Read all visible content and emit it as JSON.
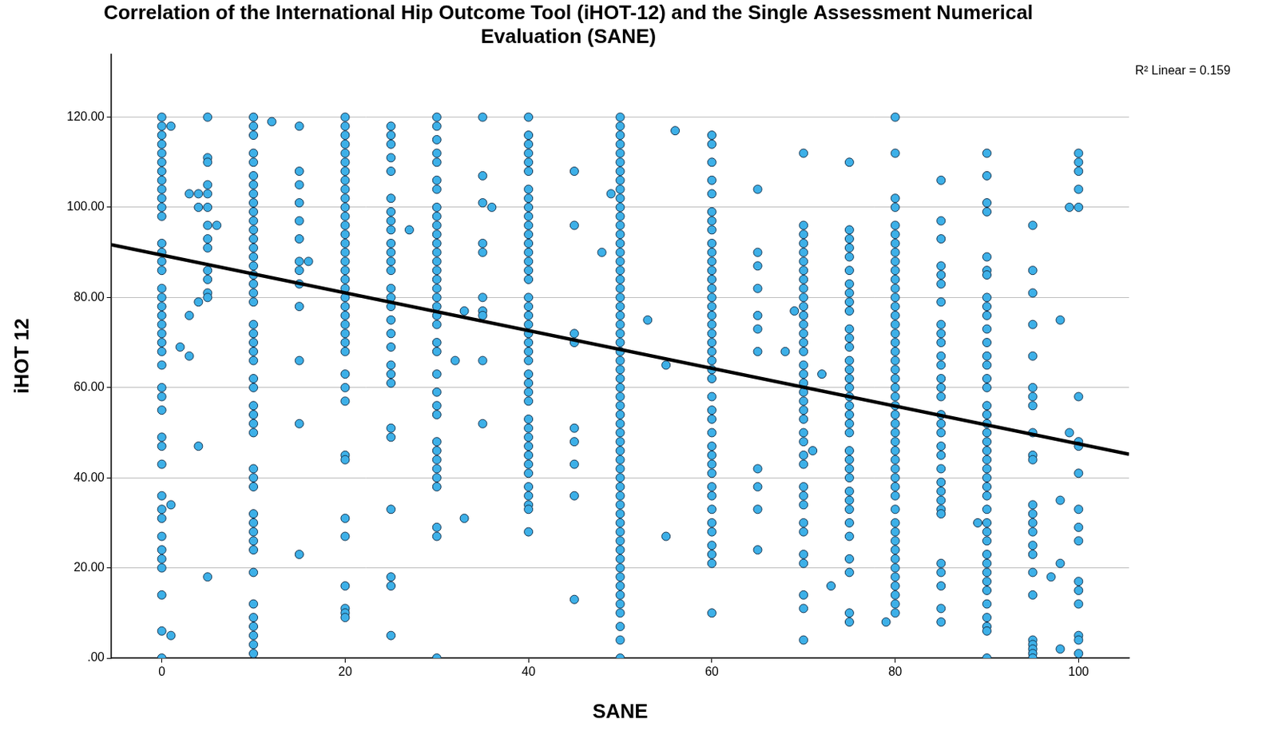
{
  "chart_data": {
    "type": "scatter",
    "title": [
      "Correlation of the International Hip Outcome Tool (iHOT-12) and the Single Assessment Numerical",
      "Evaluation (SANE)"
    ],
    "x_label": "SANE",
    "y_label": "iHOT 12",
    "annotations": [
      {
        "text": "R² Linear = 0.159"
      }
    ],
    "xlim": [
      -5.5,
      105.5
    ],
    "xticks": [
      0,
      20,
      40,
      60,
      80,
      100
    ],
    "ylim": [
      0,
      134
    ],
    "yticks": [
      {
        "value": 0,
        "label": ".00"
      },
      {
        "value": 20,
        "label": "20.00"
      },
      {
        "value": 40,
        "label": "40.00"
      },
      {
        "value": 60,
        "label": "60.00"
      },
      {
        "value": 80,
        "label": "80.00"
      },
      {
        "value": 100,
        "label": "100.00"
      },
      {
        "value": 120,
        "label": "120.00"
      }
    ],
    "grid": true,
    "series": [
      {
        "type": "scatter",
        "marker": "circle",
        "color": "#3db0e8",
        "x": [
          0,
          0,
          0,
          0,
          0,
          0,
          0,
          0,
          0,
          0,
          0,
          0,
          0,
          0,
          0,
          0,
          0,
          0,
          0,
          0,
          0,
          0,
          0,
          0,
          0,
          0,
          0,
          0,
          0,
          0,
          0,
          0,
          0,
          0,
          0,
          0,
          0,
          0,
          0,
          0,
          0,
          1,
          1,
          1,
          2,
          3,
          3,
          3,
          4,
          4,
          4,
          4,
          5,
          5,
          5,
          5,
          5,
          5,
          5,
          5,
          5,
          5,
          5,
          5,
          5,
          5,
          6,
          10,
          10,
          10,
          10,
          10,
          10,
          10,
          10,
          10,
          10,
          10,
          10,
          10,
          10,
          10,
          10,
          10,
          10,
          10,
          10,
          10,
          10,
          10,
          10,
          10,
          10,
          10,
          10,
          10,
          10,
          10,
          10,
          10,
          10,
          10,
          10,
          10,
          10,
          10,
          10,
          10,
          10,
          10,
          10,
          10,
          10,
          12,
          15,
          15,
          15,
          15,
          15,
          15,
          15,
          15,
          15,
          15,
          15,
          15,
          15,
          16,
          20,
          20,
          20,
          20,
          20,
          20,
          20,
          20,
          20,
          20,
          20,
          20,
          20,
          20,
          20,
          20,
          20,
          20,
          20,
          20,
          20,
          20,
          20,
          20,
          20,
          20,
          20,
          20,
          20,
          20,
          20,
          20,
          20,
          20,
          20,
          20,
          20,
          20,
          25,
          25,
          25,
          25,
          25,
          25,
          25,
          25,
          25,
          25,
          25,
          25,
          25,
          25,
          25,
          25,
          25,
          25,
          25,
          25,
          25,
          25,
          25,
          25,
          25,
          25,
          25,
          25,
          27,
          30,
          30,
          30,
          30,
          30,
          30,
          30,
          30,
          30,
          30,
          30,
          30,
          30,
          30,
          30,
          30,
          30,
          30,
          30,
          30,
          30,
          30,
          30,
          30,
          30,
          30,
          30,
          30,
          30,
          30,
          30,
          30,
          30,
          30,
          30,
          30,
          32,
          33,
          33,
          35,
          35,
          35,
          35,
          35,
          35,
          35,
          35,
          35,
          35,
          36,
          40,
          40,
          40,
          40,
          40,
          40,
          40,
          40,
          40,
          40,
          40,
          40,
          40,
          40,
          40,
          40,
          40,
          40,
          40,
          40,
          40,
          40,
          40,
          40,
          40,
          40,
          40,
          40,
          40,
          40,
          40,
          40,
          40,
          40,
          40,
          40,
          40,
          40,
          40,
          40,
          40,
          45,
          45,
          45,
          45,
          45,
          45,
          45,
          45,
          45,
          48,
          49,
          50,
          50,
          50,
          50,
          50,
          50,
          50,
          50,
          50,
          50,
          50,
          50,
          50,
          50,
          50,
          50,
          50,
          50,
          50,
          50,
          50,
          50,
          50,
          50,
          50,
          50,
          50,
          50,
          50,
          50,
          50,
          50,
          50,
          50,
          50,
          50,
          50,
          50,
          50,
          50,
          50,
          50,
          50,
          50,
          50,
          50,
          50,
          50,
          50,
          50,
          50,
          50,
          50,
          50,
          50,
          50,
          50,
          50,
          50,
          53,
          55,
          55,
          56,
          60,
          60,
          60,
          60,
          60,
          60,
          60,
          60,
          60,
          60,
          60,
          60,
          60,
          60,
          60,
          60,
          60,
          60,
          60,
          60,
          60,
          60,
          60,
          60,
          60,
          60,
          60,
          60,
          60,
          60,
          60,
          60,
          60,
          60,
          60,
          60,
          60,
          60,
          60,
          60,
          60,
          65,
          65,
          65,
          65,
          65,
          65,
          65,
          65,
          65,
          65,
          65,
          68,
          69,
          70,
          70,
          70,
          70,
          70,
          70,
          70,
          70,
          70,
          70,
          70,
          70,
          70,
          70,
          70,
          70,
          70,
          70,
          70,
          70,
          70,
          70,
          70,
          70,
          70,
          70,
          70,
          70,
          70,
          70,
          70,
          70,
          70,
          70,
          70,
          70,
          70,
          71,
          72,
          73,
          75,
          75,
          75,
          75,
          75,
          75,
          75,
          75,
          75,
          75,
          75,
          75,
          75,
          75,
          75,
          75,
          75,
          75,
          75,
          75,
          75,
          75,
          75,
          75,
          75,
          75,
          75,
          75,
          75,
          75,
          75,
          75,
          75,
          75,
          75,
          79,
          80,
          80,
          80,
          80,
          80,
          80,
          80,
          80,
          80,
          80,
          80,
          80,
          80,
          80,
          80,
          80,
          80,
          80,
          80,
          80,
          80,
          80,
          80,
          80,
          80,
          80,
          80,
          80,
          80,
          80,
          80,
          80,
          80,
          80,
          80,
          80,
          80,
          80,
          80,
          80,
          80,
          80,
          80,
          80,
          80,
          80,
          80,
          85,
          85,
          85,
          85,
          85,
          85,
          85,
          85,
          85,
          85,
          85,
          85,
          85,
          85,
          85,
          85,
          85,
          85,
          85,
          85,
          85,
          85,
          85,
          85,
          85,
          85,
          85,
          85,
          85,
          85,
          85,
          89,
          90,
          90,
          90,
          90,
          90,
          90,
          90,
          90,
          90,
          90,
          90,
          90,
          90,
          90,
          90,
          90,
          90,
          90,
          90,
          90,
          90,
          90,
          90,
          90,
          90,
          90,
          90,
          90,
          90,
          90,
          90,
          90,
          90,
          90,
          90,
          90,
          90,
          90,
          90,
          90,
          90,
          95,
          95,
          95,
          95,
          95,
          95,
          95,
          95,
          95,
          95,
          95,
          95,
          95,
          95,
          95,
          95,
          95,
          95,
          95,
          95,
          95,
          95,
          95,
          95,
          97,
          98,
          98,
          98,
          98,
          99,
          99,
          100,
          100,
          100,
          100,
          100,
          100,
          100,
          100,
          100,
          100,
          100,
          100,
          100,
          100,
          100,
          100,
          100,
          100
        ],
        "values": [
          120,
          118,
          116,
          114,
          112,
          110,
          108,
          106,
          104,
          102,
          100,
          98,
          92,
          90,
          88,
          86,
          82,
          80,
          78,
          76,
          74,
          72,
          70,
          68,
          65,
          60,
          58,
          55,
          49,
          47,
          43,
          36,
          33,
          31,
          27,
          24,
          22,
          20,
          14,
          6,
          0,
          118,
          34,
          5,
          69,
          103,
          76,
          67,
          103,
          100,
          79,
          47,
          120,
          111,
          110,
          105,
          103,
          100,
          96,
          93,
          91,
          86,
          84,
          81,
          80,
          18,
          96,
          120,
          118,
          116,
          112,
          110,
          107,
          105,
          103,
          101,
          99,
          97,
          95,
          93,
          91,
          89,
          87,
          85,
          83,
          81,
          79,
          74,
          72,
          70,
          68,
          66,
          62,
          60,
          56,
          54,
          52,
          50,
          42,
          40,
          38,
          32,
          30,
          28,
          26,
          24,
          19,
          12,
          9,
          7,
          5,
          3,
          1,
          119,
          118,
          108,
          105,
          101,
          97,
          93,
          88,
          86,
          83,
          78,
          66,
          52,
          23,
          88,
          120,
          118,
          116,
          114,
          112,
          110,
          108,
          106,
          104,
          102,
          100,
          98,
          96,
          94,
          92,
          90,
          88,
          86,
          84,
          82,
          80,
          78,
          76,
          74,
          72,
          70,
          68,
          63,
          60,
          57,
          45,
          44,
          31,
          27,
          16,
          11,
          10,
          9,
          118,
          116,
          114,
          111,
          108,
          102,
          99,
          97,
          95,
          92,
          90,
          88,
          86,
          82,
          80,
          78,
          75,
          72,
          69,
          65,
          63,
          61,
          51,
          49,
          33,
          18,
          16,
          5,
          95,
          120,
          118,
          115,
          112,
          110,
          106,
          104,
          100,
          98,
          96,
          94,
          92,
          90,
          88,
          86,
          84,
          82,
          80,
          78,
          76,
          74,
          70,
          68,
          63,
          59,
          56,
          54,
          48,
          46,
          44,
          42,
          40,
          38,
          29,
          27,
          0,
          66,
          77,
          31,
          120,
          107,
          101,
          92,
          90,
          80,
          77,
          76,
          66,
          52,
          100,
          120,
          116,
          114,
          112,
          110,
          108,
          104,
          102,
          100,
          98,
          96,
          94,
          92,
          90,
          88,
          86,
          84,
          80,
          78,
          76,
          74,
          72,
          70,
          68,
          66,
          63,
          61,
          59,
          57,
          53,
          51,
          49,
          47,
          45,
          43,
          41,
          38,
          36,
          34,
          33,
          28,
          108,
          96,
          72,
          70,
          51,
          48,
          43,
          36,
          13,
          90,
          103,
          120,
          118,
          116,
          114,
          112,
          110,
          108,
          106,
          104,
          102,
          100,
          98,
          96,
          94,
          92,
          90,
          88,
          86,
          84,
          82,
          80,
          78,
          76,
          74,
          72,
          70,
          68,
          66,
          64,
          62,
          60,
          58,
          56,
          54,
          52,
          50,
          48,
          46,
          44,
          42,
          40,
          38,
          36,
          34,
          32,
          30,
          28,
          26,
          24,
          22,
          20,
          18,
          16,
          14,
          12,
          10,
          7,
          4,
          0,
          75,
          65,
          27,
          117,
          116,
          114,
          110,
          106,
          103,
          99,
          97,
          95,
          92,
          90,
          88,
          86,
          84,
          82,
          80,
          78,
          76,
          74,
          72,
          70,
          68,
          66,
          64,
          62,
          58,
          55,
          53,
          50,
          47,
          45,
          43,
          41,
          38,
          36,
          33,
          30,
          28,
          25,
          23,
          21,
          10,
          104,
          90,
          87,
          82,
          76,
          73,
          68,
          42,
          38,
          33,
          24,
          68,
          77,
          112,
          96,
          94,
          92,
          90,
          88,
          86,
          84,
          82,
          80,
          78,
          76,
          74,
          72,
          70,
          68,
          65,
          63,
          61,
          59,
          57,
          55,
          53,
          50,
          48,
          45,
          43,
          38,
          36,
          34,
          30,
          28,
          23,
          21,
          14,
          11,
          4,
          46,
          63,
          16,
          110,
          95,
          93,
          91,
          89,
          86,
          83,
          81,
          79,
          77,
          73,
          71,
          69,
          66,
          64,
          62,
          60,
          58,
          56,
          54,
          52,
          50,
          46,
          44,
          42,
          40,
          37,
          35,
          33,
          30,
          27,
          22,
          19,
          10,
          8,
          8,
          120,
          112,
          102,
          100,
          96,
          94,
          92,
          90,
          88,
          86,
          84,
          82,
          80,
          78,
          76,
          74,
          72,
          70,
          68,
          66,
          64,
          62,
          60,
          58,
          56,
          54,
          52,
          50,
          48,
          46,
          44,
          42,
          40,
          38,
          36,
          33,
          30,
          28,
          26,
          24,
          22,
          20,
          18,
          16,
          14,
          12,
          10,
          106,
          97,
          93,
          87,
          85,
          83,
          79,
          74,
          72,
          70,
          67,
          65,
          62,
          60,
          58,
          54,
          52,
          50,
          47,
          45,
          42,
          39,
          37,
          35,
          33,
          32,
          21,
          19,
          16,
          11,
          8,
          30,
          112,
          107,
          101,
          99,
          89,
          86,
          85,
          80,
          78,
          76,
          73,
          70,
          67,
          65,
          62,
          60,
          56,
          54,
          52,
          50,
          48,
          46,
          44,
          42,
          40,
          38,
          36,
          33,
          30,
          28,
          26,
          23,
          21,
          19,
          17,
          15,
          12,
          9,
          7,
          6,
          0,
          96,
          86,
          81,
          74,
          67,
          60,
          58,
          56,
          50,
          45,
          44,
          34,
          32,
          30,
          28,
          25,
          23,
          19,
          14,
          4,
          3,
          2,
          1,
          0,
          18,
          75,
          35,
          21,
          2,
          100,
          50,
          112,
          110,
          108,
          104,
          100,
          58,
          48,
          47,
          41,
          33,
          29,
          26,
          17,
          15,
          12,
          5,
          4,
          1
        ]
      },
      {
        "type": "line",
        "line_style": "solid",
        "color": "#000000",
        "x": [
          -5.5,
          105.5
        ],
        "values": [
          91.7,
          45.2
        ]
      }
    ]
  }
}
